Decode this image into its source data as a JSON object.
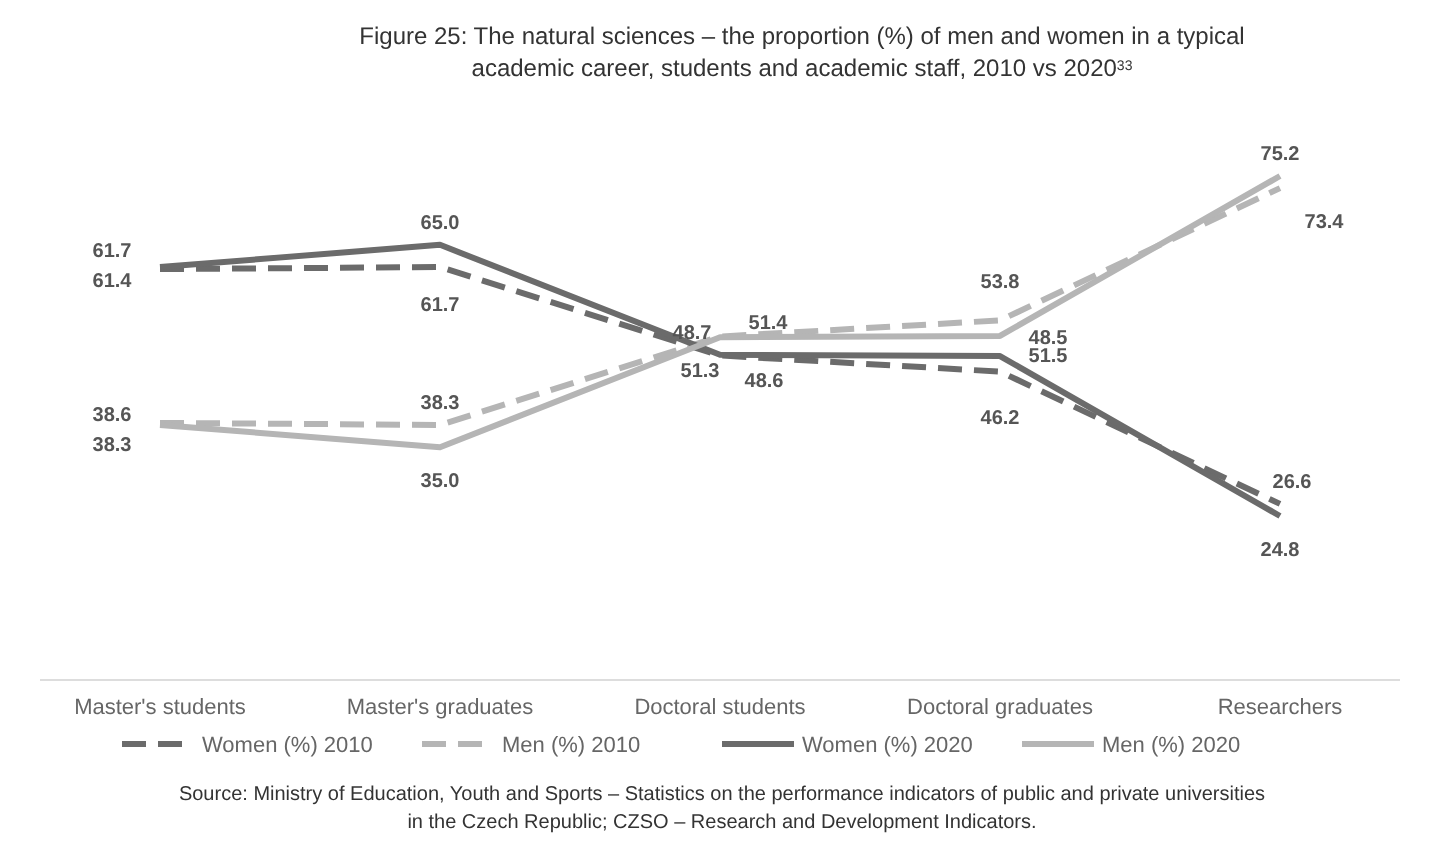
{
  "chart_data": {
    "type": "line",
    "title": "Figure 25: The natural sciences – the proportion (%) of men and women in a typical academic career, students and academic staff, 2010 vs 2020$^{33}$",
    "categories": [
      "Master's students",
      "Master's graduates",
      "Doctoral students",
      "Doctoral graduates",
      "Researchers"
    ],
    "series": [
      {
        "name": "Women (%) 2010",
        "color": "#6b6b6b",
        "line_style": "dashed",
        "values": [
          61.4,
          61.7,
          48.6,
          46.2,
          26.6
        ],
        "value_labels": [
          "61.4",
          "61.7",
          "48.6",
          "46.2",
          "26.6"
        ]
      },
      {
        "name": "Men (%) 2010",
        "color": "#b5b5b5",
        "line_style": "dashed",
        "values": [
          38.6,
          38.3,
          51.4,
          53.8,
          73.4
        ],
        "value_labels": [
          "38.6",
          "38.3",
          "51.4",
          "53.8",
          "73.4"
        ]
      },
      {
        "name": "Women (%) 2020",
        "color": "#6b6b6b",
        "line_style": "solid",
        "values": [
          61.7,
          65.0,
          48.7,
          48.5,
          24.8
        ],
        "value_labels": [
          "61.7",
          "65.0",
          "48.7",
          "48.5",
          "24.8"
        ]
      },
      {
        "name": "Men (%) 2020",
        "color": "#b5b5b5",
        "line_style": "solid",
        "values": [
          38.3,
          35.0,
          51.3,
          51.5,
          75.2
        ],
        "value_labels": [
          "38.3",
          "35.0",
          "51.3",
          "51.5",
          "75.2"
        ]
      }
    ],
    "legend": "bottom",
    "marker": "none",
    "annotations": [
      "Source: Ministry of Education, Youth and Sports – Statistics on the performance indicators of public and private universities in the Czech Republic; CZSO – Research and Development Indicators."
    ]
  }
}
